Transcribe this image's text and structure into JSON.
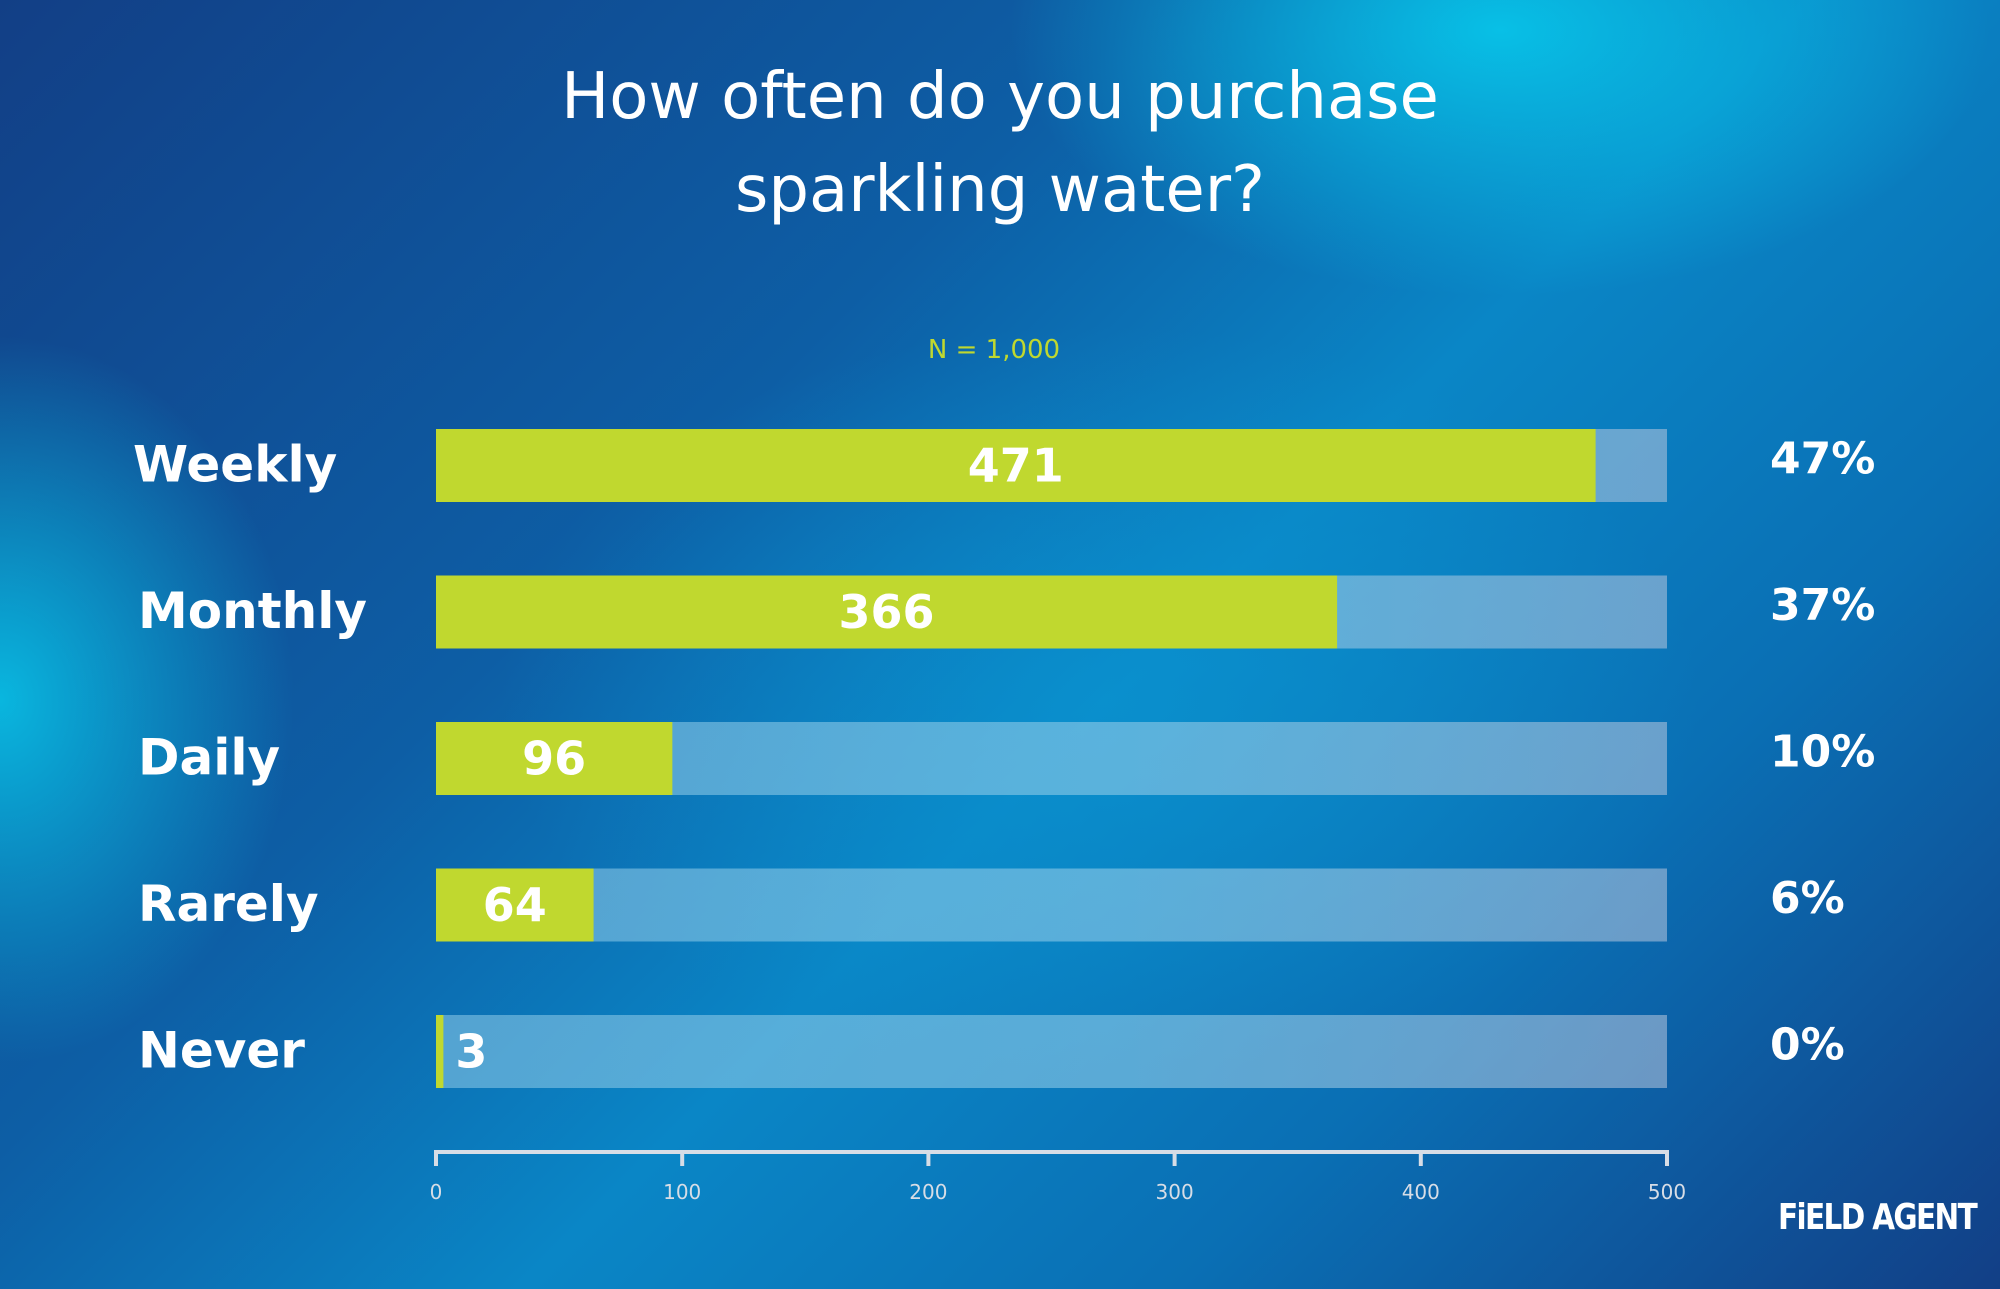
{
  "chart_data": {
    "type": "bar",
    "orientation": "horizontal",
    "title": "How often do you purchase sparkling water?",
    "title_lines": [
      "How often do you purchase",
      "sparkling water?"
    ],
    "subtitle": "N = 1,000",
    "categories": [
      "Weekly",
      "Monthly",
      "Daily",
      "Rarely",
      "Never"
    ],
    "values": [
      471,
      366,
      96,
      64,
      3
    ],
    "value_labels": [
      "471",
      "366",
      "96",
      "64",
      "3"
    ],
    "percent_labels": [
      "47%",
      "37%",
      "10%",
      "6%",
      "0%"
    ],
    "xlim": [
      0,
      500
    ],
    "xticks": [
      0,
      100,
      200,
      300,
      400,
      500
    ],
    "xtick_labels": [
      "0",
      "100",
      "200",
      "300",
      "400",
      "500"
    ],
    "xlabel": "",
    "ylabel": "",
    "grid": false,
    "legend": "none"
  },
  "colors": {
    "bar_fill": "#c0d82f",
    "bar_track": "#8fcbe8",
    "text": "#ffffff",
    "subtitle": "#c0d82f",
    "axis": "#d7dde6"
  },
  "brand": {
    "logo_text": "FiELD AGENT"
  }
}
